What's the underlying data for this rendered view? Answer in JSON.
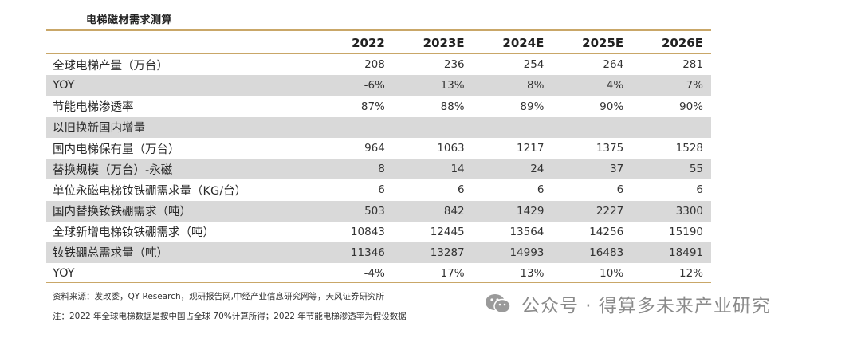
{
  "title": "电梯磁材需求测算",
  "table": {
    "headers": [
      "",
      "2022",
      "2023E",
      "2024E",
      "2025E",
      "2026E"
    ],
    "rows": [
      {
        "label": "全球电梯产量（万台）",
        "values": [
          "208",
          "236",
          "254",
          "264",
          "281"
        ],
        "shaded": false
      },
      {
        "label": "YOY",
        "values": [
          "-6%",
          "13%",
          "8%",
          "4%",
          "7%"
        ],
        "shaded": true
      },
      {
        "label": "节能电梯渗透率",
        "values": [
          "87%",
          "88%",
          "89%",
          "90%",
          "90%"
        ],
        "shaded": false
      },
      {
        "label": "以旧换新国内增量",
        "values": [
          "",
          "",
          "",
          "",
          ""
        ],
        "shaded": true
      },
      {
        "label": "国内电梯保有量（万台）",
        "values": [
          "964",
          "1063",
          "1217",
          "1375",
          "1528"
        ],
        "shaded": false
      },
      {
        "label": "替换规模（万台）-永磁",
        "values": [
          "8",
          "14",
          "24",
          "37",
          "55"
        ],
        "shaded": true
      },
      {
        "label": "单位永磁电梯钕铁硼需求量（KG/台）",
        "values": [
          "6",
          "6",
          "6",
          "6",
          "6"
        ],
        "shaded": false
      },
      {
        "label": "国内替换钕铁硼需求（吨）",
        "values": [
          "503",
          "842",
          "1429",
          "2227",
          "3300"
        ],
        "shaded": true
      },
      {
        "label": "全球新增电梯钕铁硼需求（吨）",
        "values": [
          "10843",
          "12445",
          "13564",
          "14256",
          "15190"
        ],
        "shaded": false
      },
      {
        "label": "钕铁硼总需求量（吨）",
        "values": [
          "11346",
          "13287",
          "14993",
          "16483",
          "18491"
        ],
        "shaded": true
      },
      {
        "label": "YOY",
        "values": [
          "-4%",
          "17%",
          "13%",
          "10%",
          "12%"
        ],
        "shaded": false
      }
    ]
  },
  "notes": {
    "source": "资料来源：发改委，QY Research，观研报告网,中经产业信息研究网等，天风证券研究所",
    "footnote": "注：2022 年全球电梯数据是按中国占全球 70%计算所得；2022 年节能电梯渗透率为假设数据"
  },
  "watermark": {
    "text": "公众号 · 得算多未来产业研究",
    "icon": "wechat-icon"
  },
  "colors": {
    "rule": "#c9a768",
    "shade": "#d9d9d9",
    "text": "#333333",
    "watermark": "#8a8a8a"
  }
}
